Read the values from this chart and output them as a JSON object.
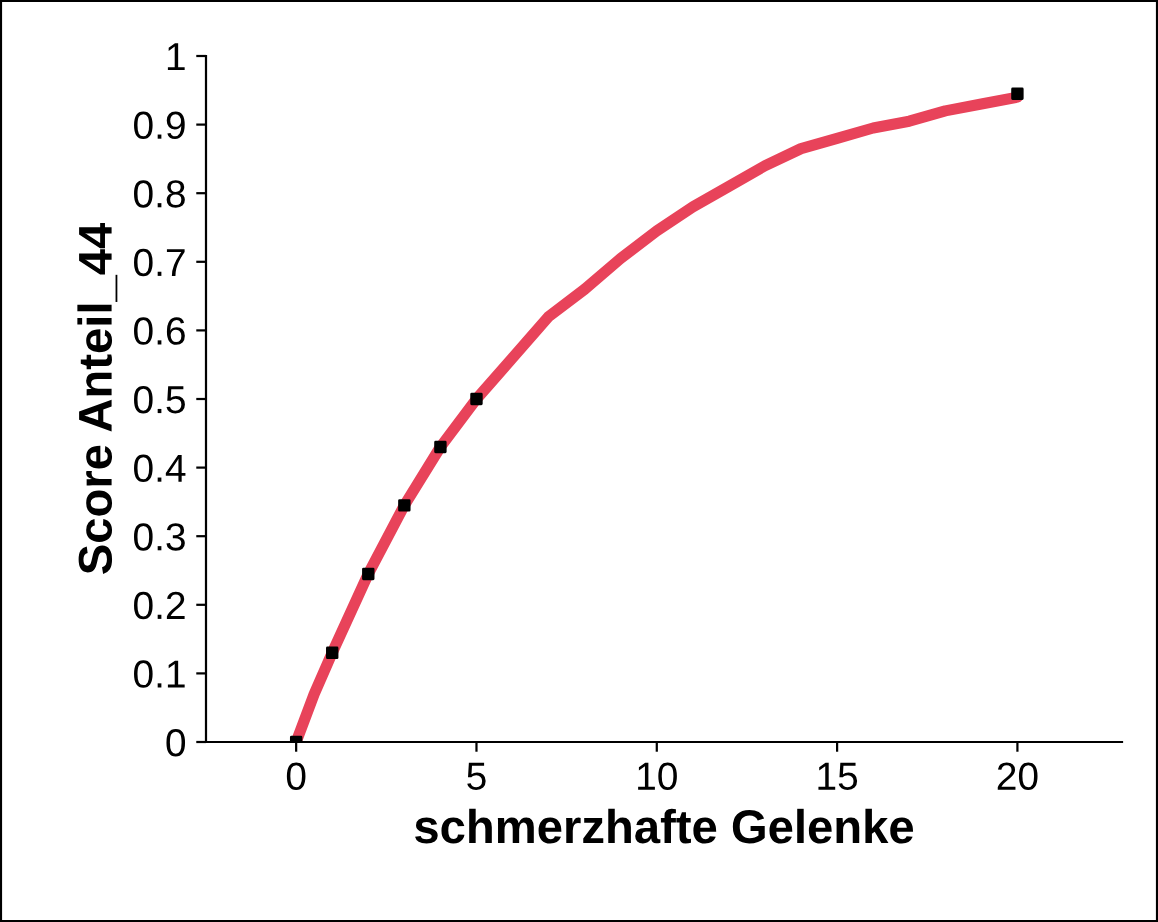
{
  "chart_data": {
    "type": "line",
    "xlabel": "schmerzhafte Gelenke",
    "ylabel": "Score Anteil_44",
    "xlim": [
      -2.5,
      22.9
    ],
    "xticks": [
      0,
      5,
      10,
      15,
      20
    ],
    "ylim": [
      0,
      1
    ],
    "yticks": [
      0,
      0.1,
      0.2,
      0.3,
      0.4,
      0.5,
      0.6,
      0.7,
      0.8,
      0.9,
      1
    ],
    "grid": false,
    "series": [
      {
        "color": "#e8435a",
        "line_style": "solid",
        "marker": "none",
        "x": [
          0,
          0.5,
          1,
          2,
          3,
          4,
          5,
          6,
          7,
          8,
          9,
          10,
          11,
          12,
          13,
          14,
          15,
          16,
          17,
          18,
          19,
          20
        ],
        "values": [
          0,
          0.07,
          0.13,
          0.245,
          0.345,
          0.43,
          0.5,
          0.56,
          0.62,
          0.66,
          0.705,
          0.745,
          0.78,
          0.81,
          0.84,
          0.865,
          0.88,
          0.895,
          0.905,
          0.92,
          0.93,
          0.94
        ]
      },
      {
        "type": "scatter",
        "color": "#000000",
        "marker": "square",
        "x": [
          0,
          1,
          2,
          3,
          4,
          5,
          20
        ],
        "values": [
          0,
          0.13,
          0.245,
          0.345,
          0.43,
          0.5,
          0.945
        ]
      }
    ]
  }
}
